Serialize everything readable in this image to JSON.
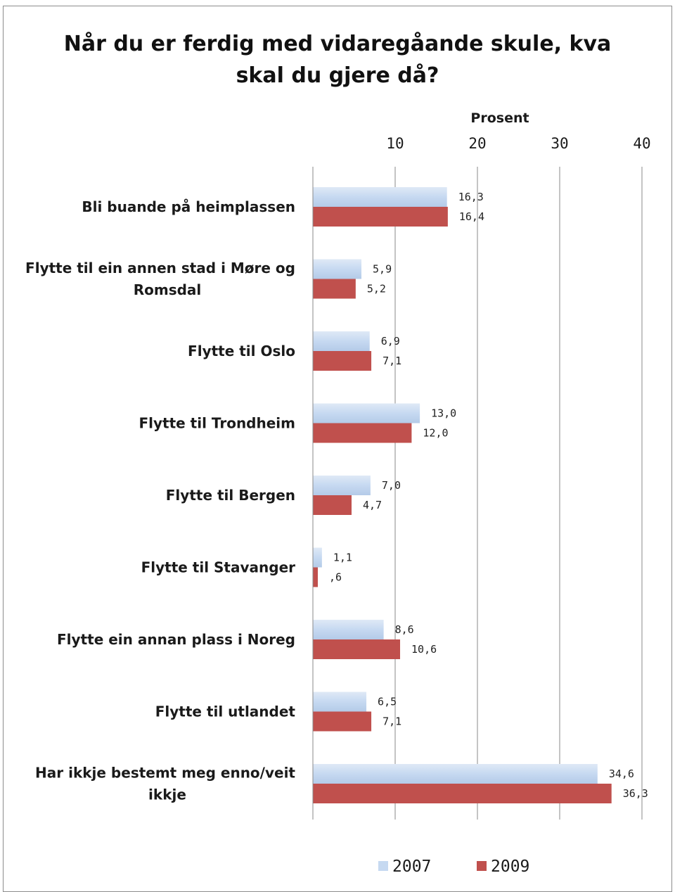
{
  "chart_data": {
    "type": "bar",
    "orientation": "horizontal",
    "title": "Når du er ferdig med vidaregåande skule, kva skal du gjere då?",
    "title_lines": [
      "Når du er ferdig med vidaregåande skule, kva",
      "skal du gjere då?"
    ],
    "xlabel": "Prosent",
    "xlim": [
      0,
      40
    ],
    "xticks": [
      10,
      20,
      30,
      40
    ],
    "xtick_labels": [
      "10",
      "20",
      "30",
      "40"
    ],
    "axis_position": "top",
    "grid": true,
    "legend_position": "bottom",
    "categories": [
      [
        "Bli buande på heimplassen"
      ],
      [
        "Flytte til ein annen stad i Møre og",
        "Romsdal"
      ],
      [
        "Flytte til Oslo"
      ],
      [
        "Flytte til Trondheim"
      ],
      [
        "Flytte til Bergen"
      ],
      [
        "Flytte til Stavanger"
      ],
      [
        "Flytte ein annan plass i Noreg"
      ],
      [
        "Flytte til utlandet"
      ],
      [
        "Har ikkje bestemt meg enno/veit",
        "ikkje"
      ]
    ],
    "series": [
      {
        "name": "2007",
        "color": "#c6d9f1",
        "values": [
          16.3,
          5.9,
          6.9,
          13.0,
          7.0,
          1.1,
          8.6,
          6.5,
          34.6
        ],
        "labels": [
          "16,3",
          "5,9",
          "6,9",
          "13,0",
          "7,0",
          "1,1",
          "8,6",
          "6,5",
          "34,6"
        ]
      },
      {
        "name": "2009",
        "color": "#c0504d",
        "values": [
          16.4,
          5.2,
          7.1,
          12.0,
          4.7,
          0.6,
          10.6,
          7.1,
          36.3
        ],
        "labels": [
          "16,4",
          "5,2",
          "7,1",
          "12,0",
          "4,7",
          ",6",
          "10,6",
          "7,1",
          "36,3"
        ]
      }
    ]
  }
}
